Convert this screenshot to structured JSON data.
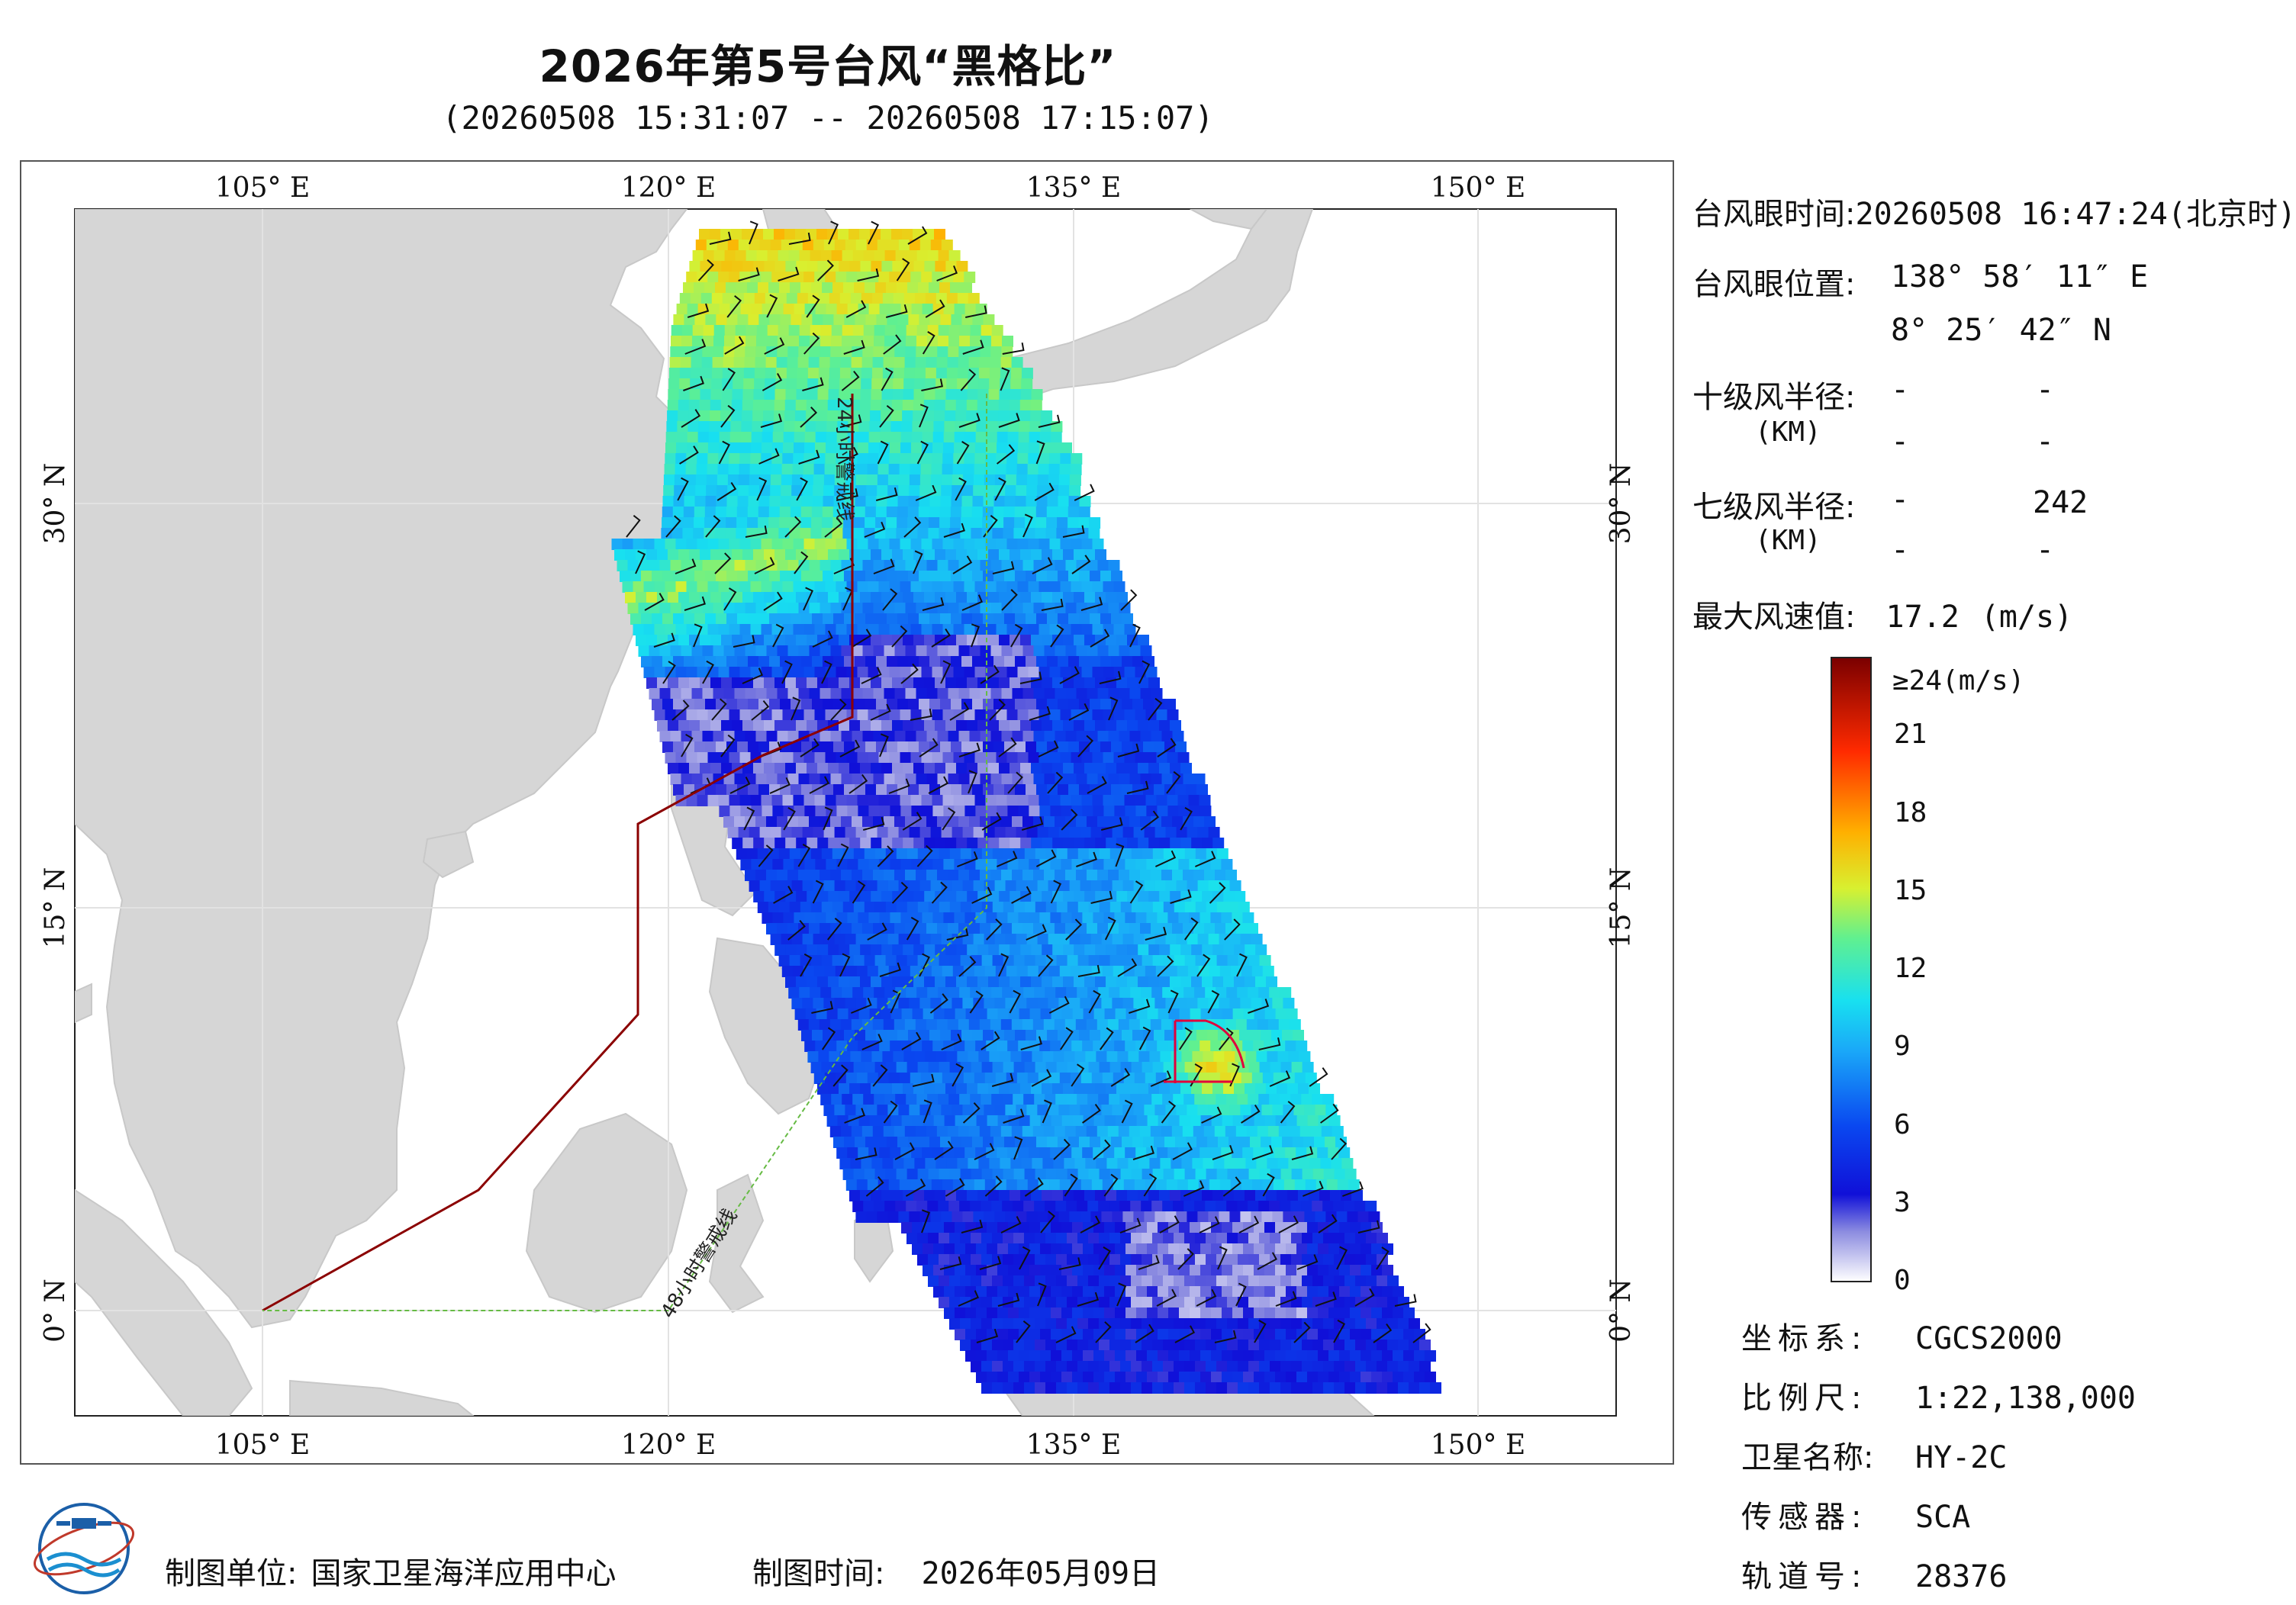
{
  "header": {
    "title": "2026年第5号台风“黑格比”",
    "subtitle": "(20260508 15:31:07 -- 20260508 17:15:07)"
  },
  "map": {
    "top_axis_labels": [
      "105° E",
      "120° E",
      "135° E",
      "150° E"
    ],
    "bottom_axis_labels": [
      "105° E",
      "120° E",
      "135° E",
      "150° E"
    ],
    "left_axis_labels": [
      "30° N",
      "15° N",
      "0° N"
    ],
    "right_axis_labels": [
      "30° N",
      "15° N",
      "0° N"
    ],
    "line_label_24h": "24小时警戒线",
    "line_label_48h": "48小时警戒线",
    "colors": {
      "land": "#d6d6d6",
      "sea": "#ffffff",
      "line_24h": "#8b0000",
      "line_48h": "#66bb44",
      "grid": "#e6e6e6",
      "eye_marker": "#e0003c"
    }
  },
  "info": {
    "eye_time_label": "台风眼时间:",
    "eye_time_value": "20260508 16:47:24(北京时)",
    "eye_pos_label": "台风眼位置:",
    "eye_lon": "138° 58′ 11″ E",
    "eye_lat": "8° 25′ 42″ N",
    "r10_label": "十级风半径:",
    "r10_unit": "(KM)",
    "r10_values": [
      "-",
      "-",
      "-",
      "-"
    ],
    "r7_label": "七级风半径:",
    "r7_unit": "(KM)",
    "r7_values": [
      "-",
      "242",
      "-",
      "-"
    ],
    "max_wind_label": "最大风速值:",
    "max_wind_value": "17.2",
    "max_wind_unit": "(m/s)"
  },
  "colorbar": {
    "top_label": "≥24(m/s)",
    "ticks": [
      "21",
      "18",
      "15",
      "12",
      "9",
      "6",
      "3",
      "0"
    ],
    "tick_values": [
      21,
      18,
      15,
      12,
      9,
      6,
      3,
      0
    ],
    "max": 24
  },
  "meta": {
    "crs_label": "坐标系:",
    "crs_value": "CGCS2000",
    "scale_label": "比例尺:",
    "scale_value": "1:22,138,000",
    "satellite_label": "卫星名称:",
    "satellite_value": "HY-2C",
    "sensor_label": "传感器:",
    "sensor_value": "SCA",
    "orbit_label": "轨道号:",
    "orbit_value": "28376"
  },
  "footer": {
    "unit_label": "制图单位:",
    "unit_value": "国家卫星海洋应用中心",
    "date_label": "制图时间:",
    "date_value": "2026年05月09日"
  },
  "logo_icon": "nsoas-logo-icon"
}
